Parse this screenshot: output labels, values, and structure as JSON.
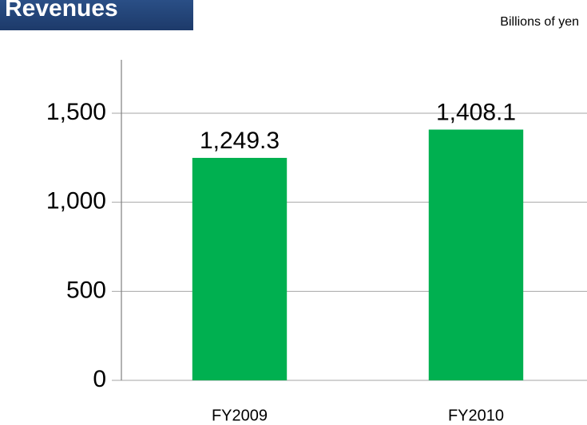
{
  "chart_data": {
    "type": "bar",
    "title": "Revenues",
    "unit": "Billions of yen",
    "categories": [
      "FY2009",
      "FY2010"
    ],
    "values": [
      1249.3,
      1408.1
    ],
    "value_labels": [
      "1,249.3",
      "1,408.1"
    ],
    "color": "#00b050",
    "ylim": [
      0,
      1800
    ],
    "yticks": [
      0,
      500,
      {
        "value": 1000,
        "label": "1,000"
      },
      {
        "value": 1500,
        "label": "1,500"
      }
    ],
    "grid": true
  }
}
